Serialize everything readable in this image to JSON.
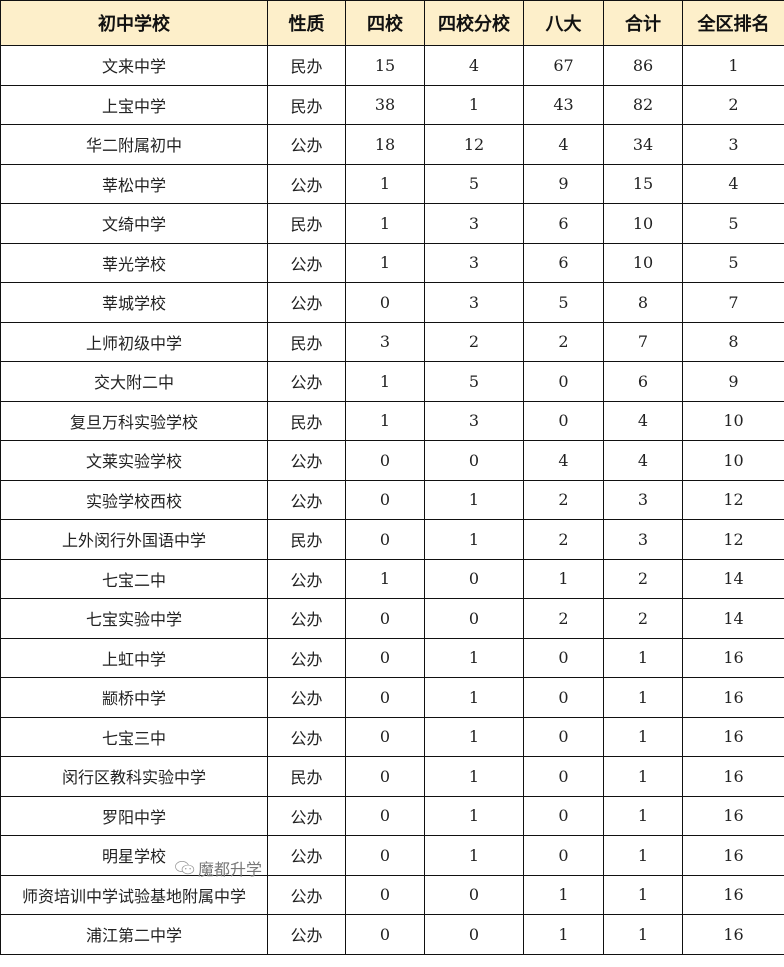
{
  "headers": [
    "初中学校",
    "性质",
    "四校",
    "四校分校",
    "八大",
    "合计",
    "全区排名"
  ],
  "rows": [
    [
      "文来中学",
      "民办",
      "15",
      "4",
      "67",
      "86",
      "1"
    ],
    [
      "上宝中学",
      "民办",
      "38",
      "1",
      "43",
      "82",
      "2"
    ],
    [
      "华二附属初中",
      "公办",
      "18",
      "12",
      "4",
      "34",
      "3"
    ],
    [
      "莘松中学",
      "公办",
      "1",
      "5",
      "9",
      "15",
      "4"
    ],
    [
      "文绮中学",
      "民办",
      "1",
      "3",
      "6",
      "10",
      "5"
    ],
    [
      "莘光学校",
      "公办",
      "1",
      "3",
      "6",
      "10",
      "5"
    ],
    [
      "莘城学校",
      "公办",
      "0",
      "3",
      "5",
      "8",
      "7"
    ],
    [
      "上师初级中学",
      "民办",
      "3",
      "2",
      "2",
      "7",
      "8"
    ],
    [
      "交大附二中",
      "公办",
      "1",
      "5",
      "0",
      "6",
      "9"
    ],
    [
      "复旦万科实验学校",
      "民办",
      "1",
      "3",
      "0",
      "4",
      "10"
    ],
    [
      "文莱实验学校",
      "公办",
      "0",
      "0",
      "4",
      "4",
      "10"
    ],
    [
      "实验学校西校",
      "公办",
      "0",
      "1",
      "2",
      "3",
      "12"
    ],
    [
      "上外闵行外国语中学",
      "民办",
      "0",
      "1",
      "2",
      "3",
      "12"
    ],
    [
      "七宝二中",
      "公办",
      "1",
      "0",
      "1",
      "2",
      "14"
    ],
    [
      "七宝实验中学",
      "公办",
      "0",
      "0",
      "2",
      "2",
      "14"
    ],
    [
      "上虹中学",
      "公办",
      "0",
      "1",
      "0",
      "1",
      "16"
    ],
    [
      "颛桥中学",
      "公办",
      "0",
      "1",
      "0",
      "1",
      "16"
    ],
    [
      "七宝三中",
      "公办",
      "0",
      "1",
      "0",
      "1",
      "16"
    ],
    [
      "闵行区教科实验中学",
      "民办",
      "0",
      "1",
      "0",
      "1",
      "16"
    ],
    [
      "罗阳中学",
      "公办",
      "0",
      "1",
      "0",
      "1",
      "16"
    ],
    [
      "明星学校",
      "公办",
      "0",
      "1",
      "0",
      "1",
      "16"
    ],
    [
      "师资培训中学试验基地附属中学",
      "公办",
      "0",
      "0",
      "1",
      "1",
      "16"
    ],
    [
      "浦江第二中学",
      "公办",
      "0",
      "0",
      "1",
      "1",
      "16"
    ]
  ],
  "watermark": {
    "text": "魔都升学",
    "icon": "wechat-icon"
  },
  "colors": {
    "header_bg": "#fdefca",
    "border": "#111111"
  }
}
